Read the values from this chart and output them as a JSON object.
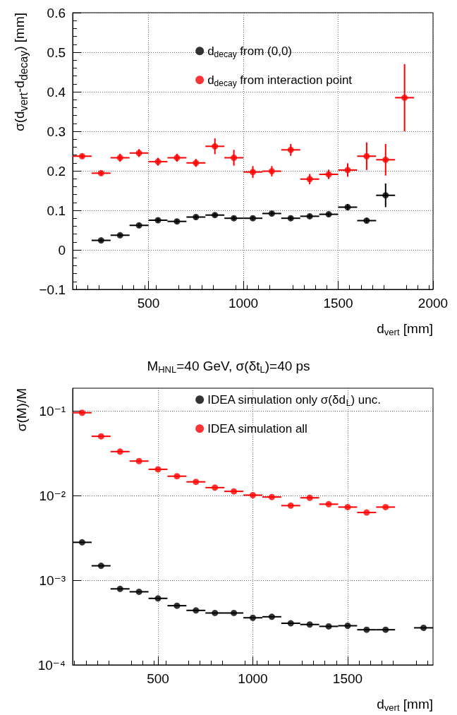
{
  "chart_data": [
    {
      "type": "scatter",
      "xlabel": "d$_{vert}$ [mm]",
      "ylabel": "σ(d$_{vert}$-d$_{decay}$) [mm]",
      "xlim": [
        100,
        2000
      ],
      "xticks": [
        500,
        1000,
        1500,
        2000
      ],
      "ylim": [
        -0.1,
        0.6
      ],
      "yticks": [
        -0.1,
        0,
        0.1,
        0.2,
        0.3,
        0.4,
        0.5,
        0.6
      ],
      "grid": true,
      "legend": "top",
      "marker": "circle",
      "series": [
        {
          "name": "d$_{decay}$ from (0,0)",
          "color": "#000000",
          "x": [
            250,
            350,
            450,
            550,
            650,
            750,
            850,
            950,
            1050,
            1150,
            1250,
            1350,
            1450,
            1550,
            1650,
            1750
          ],
          "values": [
            0.024,
            0.037,
            0.062,
            0.075,
            0.072,
            0.083,
            0.088,
            0.08,
            0.08,
            0.092,
            0.08,
            0.085,
            0.09,
            0.108,
            0.074,
            0.138
          ],
          "errors": [
            0.004,
            0.004,
            0.005,
            0.005,
            0.005,
            0.005,
            0.005,
            0.005,
            0.005,
            0.005,
            0.005,
            0.005,
            0.005,
            0.008,
            0.006,
            0.03
          ],
          "xerrors": [
            50,
            50,
            50,
            50,
            50,
            50,
            50,
            50,
            50,
            50,
            50,
            50,
            50,
            50,
            50,
            50
          ]
        },
        {
          "name": "d$_{decay}$ from interaction point",
          "color": "#ff0000",
          "x": [
            150,
            250,
            350,
            450,
            550,
            650,
            750,
            850,
            950,
            1050,
            1150,
            1250,
            1350,
            1450,
            1550,
            1650,
            1750,
            1850
          ],
          "values": [
            0.237,
            0.194,
            0.233,
            0.245,
            0.223,
            0.233,
            0.22,
            0.262,
            0.233,
            0.197,
            0.199,
            0.253,
            0.179,
            0.191,
            0.202,
            0.237,
            0.228,
            0.385
          ],
          "errors": [
            0.005,
            0.006,
            0.01,
            0.01,
            0.01,
            0.01,
            0.01,
            0.02,
            0.02,
            0.015,
            0.013,
            0.015,
            0.013,
            0.012,
            0.017,
            0.035,
            0.04,
            0.085
          ],
          "xerrors": [
            50,
            50,
            50,
            50,
            50,
            50,
            50,
            50,
            50,
            50,
            50,
            50,
            50,
            50,
            50,
            50,
            50,
            50
          ]
        }
      ]
    },
    {
      "type": "scatter",
      "title": "M$_{HNL}$=40 GeV, σ(δt$_{L}$)=40 ps",
      "xlabel": "d$_{vert}$ [mm]",
      "ylabel": "σ(M)/M",
      "log": "y",
      "xlim": [
        50,
        1950
      ],
      "xticks": [
        500,
        1000,
        1500
      ],
      "ylim": [
        0.0001,
        0.185
      ],
      "yticks": [
        {
          "value": 0.0001,
          "label": "10⁻⁴"
        },
        {
          "value": 0.001,
          "label": "10⁻³"
        },
        {
          "value": 0.01,
          "label": "10⁻²"
        },
        {
          "value": 0.1,
          "label": "10⁻¹"
        }
      ],
      "grid": true,
      "legend": "top",
      "marker": "circle",
      "series": [
        {
          "name": "IDEA simulation only σ(δd$_{L}$) unc.",
          "color": "#000000",
          "x": [
            100,
            200,
            300,
            400,
            500,
            600,
            700,
            800,
            900,
            1000,
            1100,
            1200,
            1300,
            1400,
            1500,
            1600,
            1700,
            1900
          ],
          "values": [
            0.0028,
            0.00148,
            0.00079,
            0.00073,
            0.00061,
            0.0005,
            0.00044,
            0.00041,
            0.00041,
            0.00036,
            0.00037,
            0.00031,
            0.0003,
            0.000285,
            0.00029,
            0.00026,
            0.00026,
            0.000274
          ],
          "xerrors": [
            50,
            50,
            50,
            50,
            50,
            50,
            50,
            50,
            50,
            50,
            50,
            50,
            50,
            50,
            50,
            50,
            50,
            50
          ]
        },
        {
          "name": "IDEA simulation all",
          "color": "#ff0000",
          "x": [
            100,
            200,
            300,
            400,
            500,
            600,
            700,
            800,
            900,
            1000,
            1100,
            1200,
            1300,
            1400,
            1500,
            1600,
            1700
          ],
          "values": [
            0.095,
            0.05,
            0.033,
            0.0255,
            0.0204,
            0.0169,
            0.0145,
            0.0124,
            0.0112,
            0.0101,
            0.0096,
            0.0076,
            0.0094,
            0.0079,
            0.0073,
            0.0063,
            0.0073
          ],
          "xerrors": [
            50,
            50,
            50,
            50,
            50,
            50,
            50,
            50,
            50,
            50,
            50,
            50,
            50,
            50,
            50,
            50,
            50
          ]
        }
      ]
    }
  ]
}
